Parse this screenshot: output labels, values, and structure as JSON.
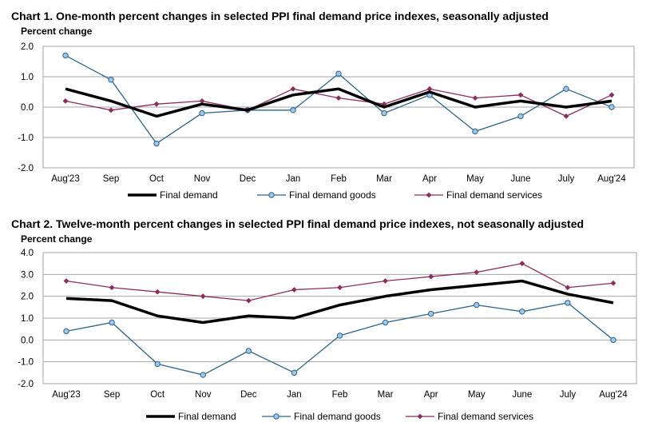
{
  "chart_data": [
    {
      "type": "line",
      "title": "Chart 1. One-month percent changes in selected PPI final demand price indexes, seasonally adjusted",
      "ylabel": "Percent change",
      "categories": [
        "Aug'23",
        "Sep",
        "Oct",
        "Nov",
        "Dec",
        "Jan",
        "Feb",
        "Mar",
        "Apr",
        "May",
        "June",
        "July",
        "Aug'24"
      ],
      "ylim": [
        -2.0,
        2.0
      ],
      "yticks": [
        "2.0",
        "1.0",
        "0.0",
        "-1.0",
        "-2.0"
      ],
      "grid": true,
      "legend_position": "bottom",
      "series": [
        {
          "name": "Final demand",
          "color": "#000000",
          "style": "thick-line",
          "values": [
            0.6,
            0.2,
            -0.3,
            0.1,
            -0.1,
            0.4,
            0.6,
            0.0,
            0.5,
            0.0,
            0.2,
            0.0,
            0.2
          ]
        },
        {
          "name": "Final demand goods",
          "color": "#2e6486",
          "marker": "circle",
          "values": [
            1.7,
            0.9,
            -1.2,
            -0.2,
            -0.1,
            -0.1,
            1.1,
            -0.2,
            0.4,
            -0.8,
            -0.3,
            0.6,
            0.0
          ]
        },
        {
          "name": "Final demand services",
          "color": "#8b2d5c",
          "marker": "diamond",
          "values": [
            0.2,
            -0.1,
            0.1,
            0.2,
            -0.1,
            0.6,
            0.3,
            0.1,
            0.6,
            0.3,
            0.4,
            -0.3,
            0.4
          ]
        }
      ]
    },
    {
      "type": "line",
      "title": "Chart 2. Twelve-month percent changes in selected PPI final demand price indexes, not seasonally adjusted",
      "ylabel": "Percent change",
      "categories": [
        "Aug'23",
        "Sep",
        "Oct",
        "Nov",
        "Dec",
        "Jan",
        "Feb",
        "Mar",
        "Apr",
        "May",
        "June",
        "July",
        "Aug'24"
      ],
      "ylim": [
        -2.0,
        4.0
      ],
      "yticks": [
        "4.0",
        "3.0",
        "2.0",
        "1.0",
        "0.0",
        "-1.0",
        "-2.0"
      ],
      "grid": true,
      "legend_position": "bottom",
      "series": [
        {
          "name": "Final demand",
          "color": "#000000",
          "style": "thick-line",
          "values": [
            1.9,
            1.8,
            1.1,
            0.8,
            1.1,
            1.0,
            1.6,
            2.0,
            2.3,
            2.5,
            2.7,
            2.1,
            1.7
          ]
        },
        {
          "name": "Final demand goods",
          "color": "#2e6486",
          "marker": "circle",
          "values": [
            0.4,
            0.8,
            -1.1,
            -1.6,
            -0.5,
            -1.5,
            0.2,
            0.8,
            1.2,
            1.6,
            1.3,
            1.7,
            0.0
          ]
        },
        {
          "name": "Final demand services",
          "color": "#8b2d5c",
          "marker": "diamond",
          "values": [
            2.7,
            2.4,
            2.2,
            2.0,
            1.8,
            2.3,
            2.4,
            2.7,
            2.9,
            3.1,
            3.5,
            2.4,
            2.6
          ]
        }
      ]
    }
  ]
}
